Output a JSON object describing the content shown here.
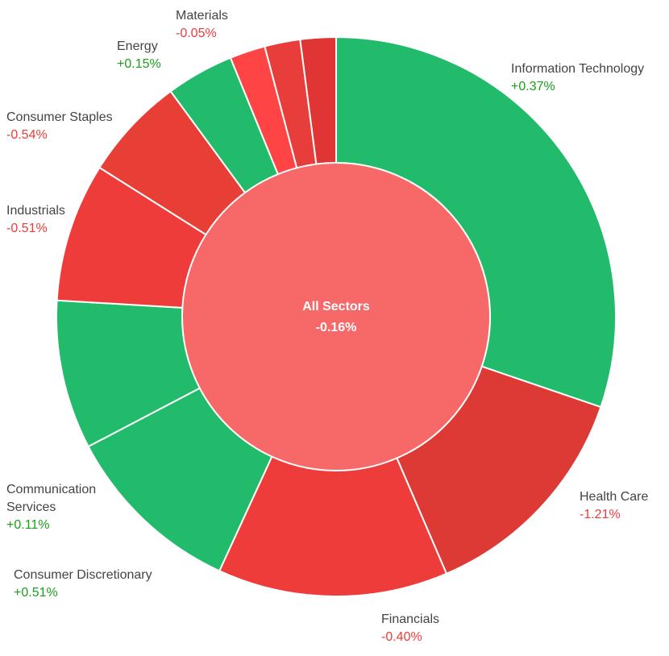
{
  "chart_data": {
    "type": "pie",
    "center": {
      "name": "All Sectors",
      "value": "-0.16%",
      "color": "#f76868"
    },
    "positive_text_color": "#1a9e1a",
    "negative_text_color": "#ee3b3b",
    "slices": [
      {
        "name": "Information Technology",
        "value": "+0.37%",
        "share": 30.9,
        "color": "#22bb6c"
      },
      {
        "name": "Health Care",
        "value": "-1.21%",
        "share": 13.6,
        "color": "#dd3a35"
      },
      {
        "name": "Financials",
        "value": "-0.40%",
        "share": 13.6,
        "color": "#ee3c3a"
      },
      {
        "name": "Consumer Discretionary",
        "value": "+0.51%",
        "share": 10.7,
        "color": "#22bb6c"
      },
      {
        "name": "Communication Services",
        "value": "+0.11%",
        "share": 8.8,
        "color": "#22bb6c"
      },
      {
        "name": "Industrials",
        "value": "-0.51%",
        "share": 8.2,
        "color": "#ee3c3a"
      },
      {
        "name": "Consumer Staples",
        "value": "-0.54%",
        "share": 6.1,
        "color": "#e73e36"
      },
      {
        "name": "Energy",
        "value": "+0.15%",
        "share": 4.0,
        "color": "#22bb6c"
      },
      {
        "name": "",
        "value": "",
        "share": 2.1,
        "color": "#fe4444"
      },
      {
        "name": "Materials",
        "value": "-0.05%",
        "share": 2.1,
        "color": "#e73e3b"
      },
      {
        "name": "",
        "value": "",
        "share": 2.1,
        "color": "#e03535"
      }
    ]
  }
}
